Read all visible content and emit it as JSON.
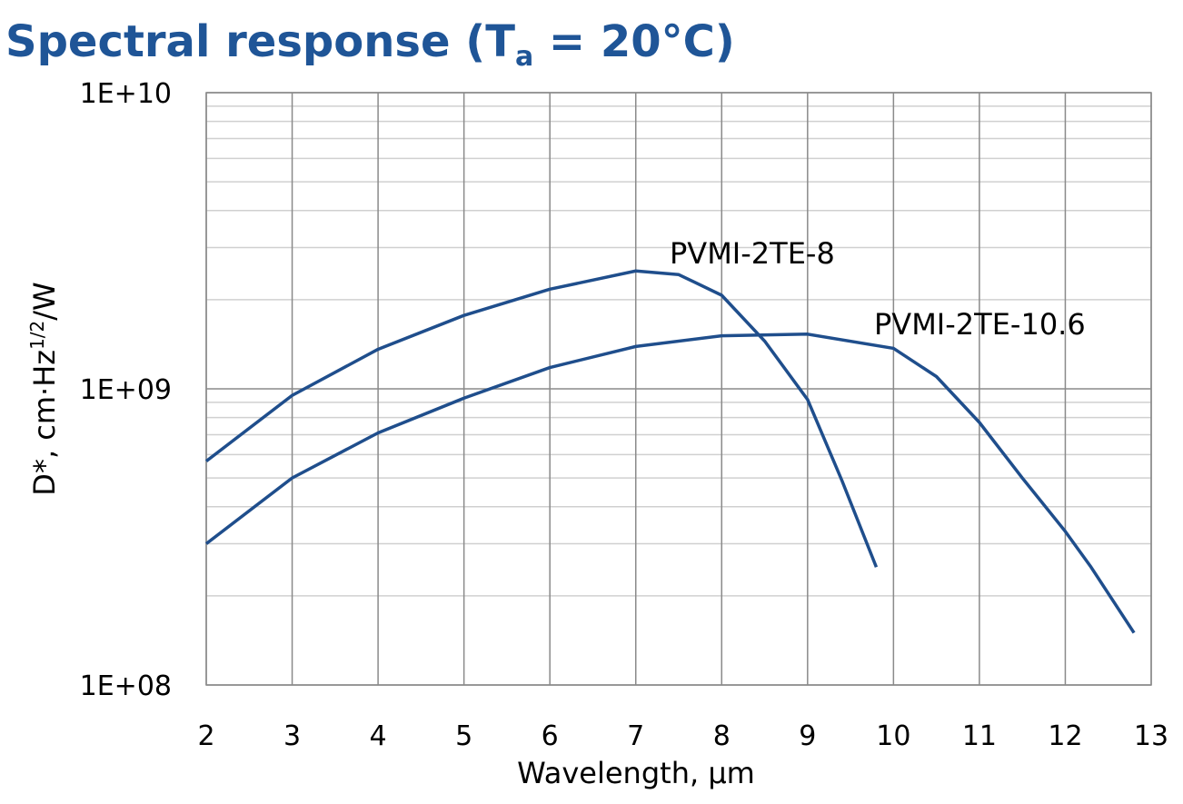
{
  "chart_data": {
    "type": "line",
    "title": [
      "Spectral response (T",
      "a",
      " = 20°C)"
    ],
    "xlabel": "Wavelength, µm",
    "ylabel": [
      "D*, cm·Hz",
      "1/2",
      "/W"
    ],
    "xlim": [
      2,
      13
    ],
    "xticks": [
      2,
      3,
      4,
      5,
      6,
      7,
      8,
      9,
      10,
      11,
      12,
      13
    ],
    "ylim": [
      100000000,
      10000000000
    ],
    "yticks": [
      {
        "value": 100000000,
        "label": "1E+08"
      },
      {
        "value": 1000000000,
        "label": "1E+09"
      },
      {
        "value": 10000000000,
        "label": "1E+10"
      }
    ],
    "log_y": true,
    "grid": true,
    "series": [
      {
        "name": "PVMI-2TE-8",
        "color": "#1f4e8c",
        "x": [
          2,
          3,
          4,
          5,
          6,
          7,
          7.5,
          8,
          8.5,
          9,
          9.4,
          9.8
        ],
        "values": [
          570000000,
          950000000,
          1360000000,
          1770000000,
          2170000000,
          2500000000,
          2430000000,
          2070000000,
          1450000000,
          920000000,
          490000000,
          250000000
        ]
      },
      {
        "name": "PVMI-2TE-10.6",
        "color": "#1f4e8c",
        "x": [
          2,
          3,
          4,
          5,
          6,
          7,
          8,
          9,
          10,
          10.5,
          11,
          11.5,
          12,
          12.3,
          12.8
        ],
        "values": [
          300000000,
          500000000,
          710000000,
          930000000,
          1180000000,
          1390000000,
          1510000000,
          1530000000,
          1370000000,
          1100000000,
          770000000,
          500000000,
          330000000,
          250000000,
          150000000
        ]
      }
    ]
  }
}
